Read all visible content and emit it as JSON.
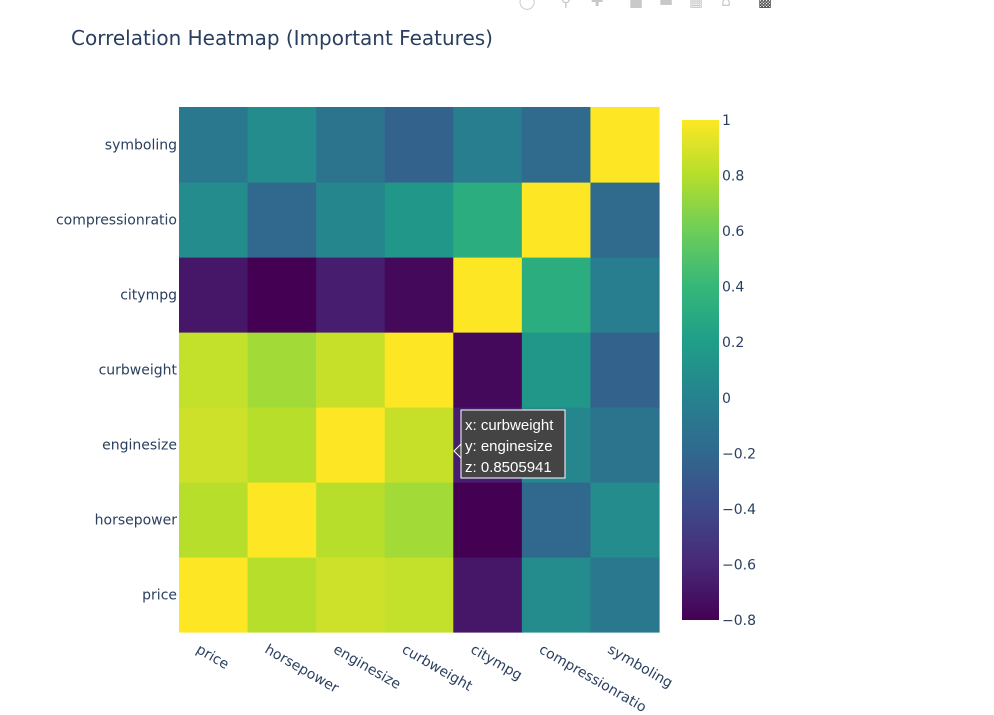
{
  "toolbar": {
    "icons": [
      "camera-icon",
      "zoom-icon",
      "pan-icon",
      "zoom-in-icon",
      "zoom-out-icon",
      "autoscale-icon",
      "home-icon",
      "plotly-logo-icon"
    ]
  },
  "chart_data": {
    "type": "heatmap",
    "title": "Correlation Heatmap (Important Features)",
    "x": [
      "price",
      "horsepower",
      "enginesize",
      "curbweight",
      "citympg",
      "compressionratio",
      "symboling"
    ],
    "y": [
      "price",
      "horsepower",
      "enginesize",
      "curbweight",
      "citympg",
      "compressionratio",
      "symboling"
    ],
    "z": [
      [
        1.0,
        0.81,
        0.87,
        0.84,
        -0.69,
        0.07,
        -0.08
      ],
      [
        0.81,
        1.0,
        0.81,
        0.75,
        -0.8,
        -0.2,
        0.07
      ],
      [
        0.87,
        0.81,
        1.0,
        0.85,
        -0.65,
        0.03,
        -0.11
      ],
      [
        0.84,
        0.75,
        0.85,
        1.0,
        -0.76,
        0.15,
        -0.23
      ],
      [
        -0.69,
        -0.8,
        -0.65,
        -0.76,
        1.0,
        0.32,
        -0.04
      ],
      [
        0.07,
        -0.2,
        0.03,
        0.15,
        0.32,
        1.0,
        -0.18
      ],
      [
        -0.08,
        0.07,
        -0.11,
        -0.23,
        -0.04,
        -0.18,
        1.0
      ]
    ],
    "zmin": -0.8,
    "zmax": 1.0,
    "colorscale": "Viridis",
    "colorbar_ticks": [
      1,
      0.8,
      0.6,
      0.4,
      0.2,
      0,
      -0.2,
      -0.4,
      -0.6,
      -0.8
    ],
    "colorbar_ticklabels": [
      "1",
      "0.8",
      "0.6",
      "0.4",
      "0.2",
      "0",
      "−0.2",
      "−0.4",
      "−0.6",
      "−0.8"
    ],
    "hover": {
      "x_line": "x: curbweight",
      "y_line": "y: enginesize",
      "z_line": "z: 0.8505941"
    }
  }
}
